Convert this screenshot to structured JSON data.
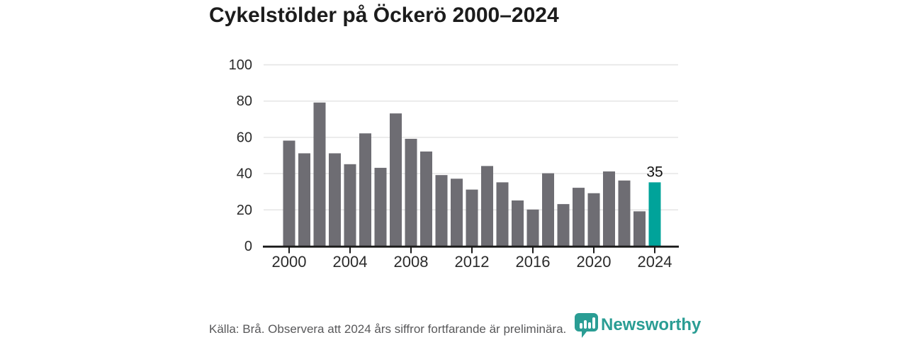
{
  "title": "Cykelstölder på Öckerö 2000–2024",
  "chart_data": {
    "type": "bar",
    "title": "Cykelstölder på Öckerö 2000–2024",
    "categories": [
      "2000",
      "2001",
      "2002",
      "2003",
      "2004",
      "2005",
      "2006",
      "2007",
      "2008",
      "2009",
      "2010",
      "2011",
      "2012",
      "2013",
      "2014",
      "2015",
      "2016",
      "2017",
      "2018",
      "2019",
      "2020",
      "2021",
      "2022",
      "2023",
      "2024"
    ],
    "values": [
      58,
      51,
      79,
      51,
      45,
      62,
      43,
      73,
      59,
      52,
      39,
      37,
      31,
      44,
      35,
      25,
      20,
      40,
      23,
      32,
      29,
      41,
      36,
      19,
      35
    ],
    "xlabel": "",
    "ylabel": "",
    "ylim": [
      0,
      100
    ],
    "yticks": [
      0,
      20,
      40,
      60,
      80,
      100
    ],
    "xtick_labels": [
      "2000",
      "2004",
      "2008",
      "2012",
      "2016",
      "2020",
      "2024"
    ],
    "grid": true,
    "legend_position": "none",
    "highlight": {
      "category": "2024",
      "data_label": "35"
    }
  },
  "colors": {
    "bar": "#6e6d73",
    "highlight_bar": "#00a39a",
    "axis": "#1a1a1a",
    "grid": "#e3e3e3",
    "tick_label": "#2b2b2b",
    "value_label": "#111111",
    "footer_text": "#58585a",
    "brand": "#2a9d94"
  },
  "footer": {
    "source_text": "Källa: Brå. Observera att 2024 års siffror fortfarande är preliminära.",
    "brand": "Newsworthy",
    "logo_icon": "newsworthy-speech-bubble-bar-chart-icon"
  }
}
